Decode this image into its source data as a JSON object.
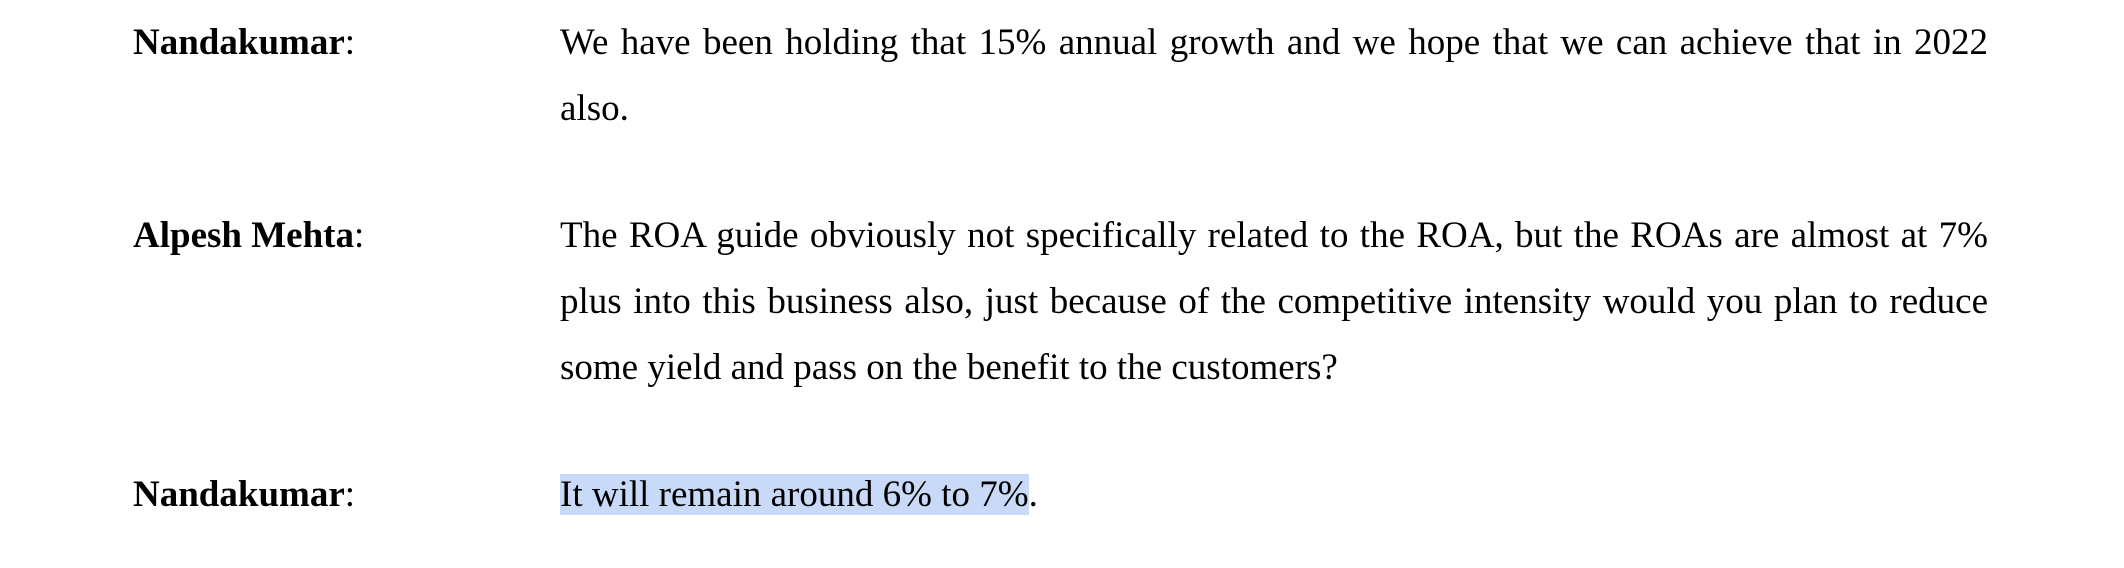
{
  "entries": [
    {
      "speaker": "Nandakumar",
      "separator": ":",
      "segments": [
        {
          "text": "We have been holding that 15% annual growth and we hope that we can achieve that in 2022 also.",
          "highlight": false
        }
      ]
    },
    {
      "speaker": "Alpesh Mehta",
      "separator": ":",
      "segments": [
        {
          "text": "The ROA guide obviously not specifically related to the ROA, but the ROAs are almost at 7% plus into this business also, just because of the competitive intensity would you plan to reduce some yield and pass on the benefit to the customers?",
          "highlight": false
        }
      ]
    },
    {
      "speaker": "Nandakumar",
      "separator": ":",
      "segments": [
        {
          "text": "It will remain around 6% to 7%",
          "highlight": true
        },
        {
          "text": ".",
          "highlight": false
        }
      ]
    }
  ]
}
